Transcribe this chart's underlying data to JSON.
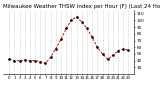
{
  "hours": [
    0,
    1,
    2,
    3,
    4,
    5,
    6,
    7,
    8,
    9,
    10,
    11,
    12,
    13,
    14,
    15,
    16,
    17,
    18,
    19,
    20,
    21,
    22,
    23
  ],
  "values": [
    42,
    40,
    40,
    41,
    40,
    40,
    38,
    36,
    45,
    58,
    72,
    88,
    101,
    105,
    98,
    88,
    75,
    60,
    50,
    42,
    48,
    55,
    57,
    56
  ],
  "line_color": "#dd0000",
  "marker_color": "#000000",
  "bg_color": "#ffffff",
  "grid_color": "#bbbbbb",
  "title": "Milwaukee Weather THSW Index per Hour (F) (Last 24 Hours)",
  "title_fontsize": 4.0,
  "ylim": [
    20,
    115
  ],
  "yticks": [
    30,
    40,
    50,
    60,
    70,
    80,
    90,
    100,
    110
  ],
  "xtick_labels": [
    "0",
    "1",
    "2",
    "3",
    "4",
    "5",
    "6",
    "7",
    "8",
    "9",
    "10",
    "11",
    "12",
    "13",
    "14",
    "15",
    "16",
    "17",
    "18",
    "19",
    "20",
    "21",
    "22",
    "23"
  ]
}
